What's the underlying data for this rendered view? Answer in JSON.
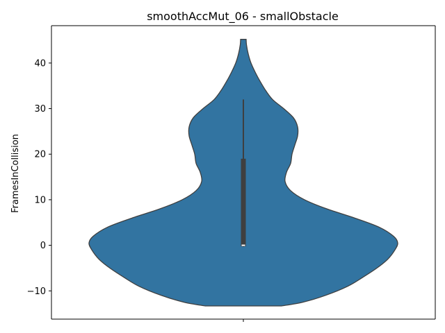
{
  "chart_data": {
    "type": "violin",
    "title": "smoothAccMut_06 - smallObstacle",
    "xlabel": "",
    "ylabel": "FramesInCollision",
    "ylim": [
      -16.2,
      48.2
    ],
    "yticks": [
      -10,
      0,
      10,
      20,
      30,
      40
    ],
    "ytick_labels": [
      "−10",
      "0",
      "10",
      "20",
      "30",
      "40"
    ],
    "grid": false,
    "violin_color": "#3274a1",
    "edge_color": "#3f3f3f",
    "box_color": "#3f3f3f",
    "median_color": "#ffffff",
    "violin": {
      "density_profile": [
        {
          "y": -13.3,
          "half_width": 55
        },
        {
          "y": -12.5,
          "half_width": 85
        },
        {
          "y": -11,
          "half_width": 118
        },
        {
          "y": -9,
          "half_width": 150
        },
        {
          "y": -7,
          "half_width": 172
        },
        {
          "y": -5,
          "half_width": 192
        },
        {
          "y": -3,
          "half_width": 208
        },
        {
          "y": -1,
          "half_width": 218
        },
        {
          "y": 0.5,
          "half_width": 222
        },
        {
          "y": 2,
          "half_width": 216
        },
        {
          "y": 4,
          "half_width": 195
        },
        {
          "y": 6,
          "half_width": 160
        },
        {
          "y": 8,
          "half_width": 120
        },
        {
          "y": 10,
          "half_width": 88
        },
        {
          "y": 12,
          "half_width": 68
        },
        {
          "y": 14,
          "half_width": 60
        },
        {
          "y": 16,
          "half_width": 62
        },
        {
          "y": 18,
          "half_width": 68
        },
        {
          "y": 20,
          "half_width": 70
        },
        {
          "y": 22,
          "half_width": 74
        },
        {
          "y": 24,
          "half_width": 78
        },
        {
          "y": 26,
          "half_width": 78
        },
        {
          "y": 28,
          "half_width": 72
        },
        {
          "y": 30,
          "half_width": 58
        },
        {
          "y": 32,
          "half_width": 42
        },
        {
          "y": 34,
          "half_width": 32
        },
        {
          "y": 36,
          "half_width": 24
        },
        {
          "y": 38,
          "half_width": 17
        },
        {
          "y": 40,
          "half_width": 11
        },
        {
          "y": 42,
          "half_width": 7
        },
        {
          "y": 44,
          "half_width": 4.5
        },
        {
          "y": 45.2,
          "half_width": 4
        }
      ],
      "box": {
        "q1": 0,
        "median": 0,
        "q3": 19,
        "whisker_low": -0.3,
        "whisker_high": 32
      }
    }
  }
}
